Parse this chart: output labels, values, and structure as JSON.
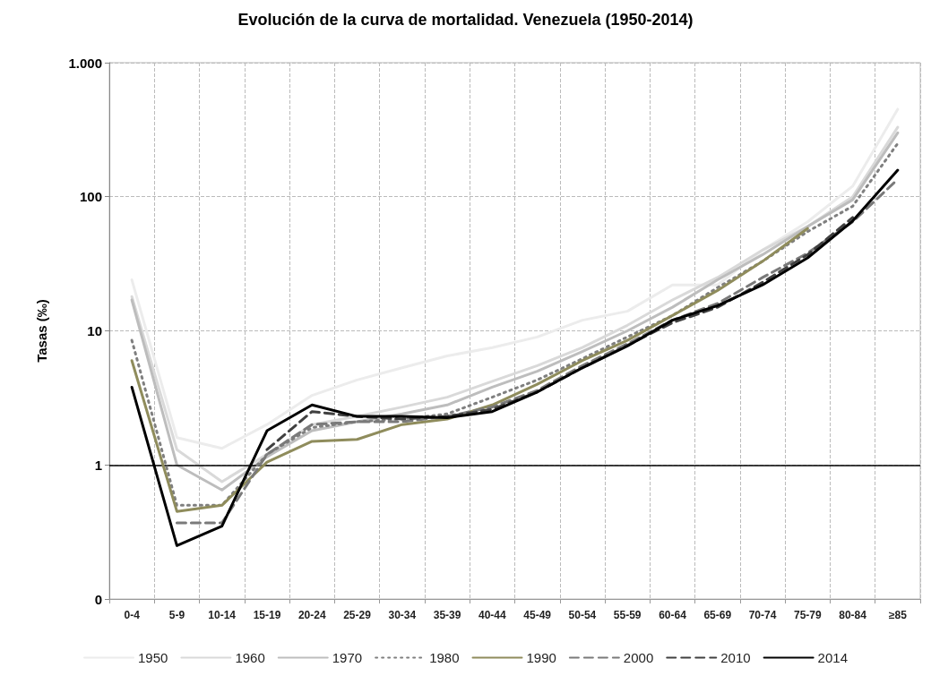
{
  "chart_data": {
    "type": "line",
    "title": "Evolución de la curva de mortalidad. Venezuela (1950-2014)",
    "ylabel": "Tasas (‰)",
    "categories": [
      "0-4",
      "5-9",
      "10-14",
      "15-19",
      "20-24",
      "25-29",
      "30-34",
      "35-39",
      "40-44",
      "45-49",
      "50-54",
      "55-59",
      "60-64",
      "65-69",
      "70-74",
      "75-79",
      "80-84",
      "≥85"
    ],
    "series": [
      {
        "name": "1950",
        "color": "#ececec",
        "line_style": "solid",
        "values": [
          24,
          1.6,
          1.33,
          2.0,
          3.3,
          4.3,
          5.3,
          6.5,
          7.5,
          9,
          12,
          14,
          22,
          22,
          40,
          65,
          120,
          450
        ]
      },
      {
        "name": "1960",
        "color": "#d9d9d9",
        "line_style": "solid",
        "values": [
          18,
          1.3,
          0.75,
          1.2,
          2.0,
          2.3,
          2.7,
          3.2,
          4.2,
          5.5,
          7.5,
          11,
          17,
          25,
          40,
          60,
          100,
          330
        ]
      },
      {
        "name": "1970",
        "color": "#bdbdbd",
        "line_style": "solid",
        "values": [
          17,
          1.0,
          0.65,
          1.15,
          1.8,
          2.1,
          2.4,
          2.8,
          3.8,
          5.0,
          7,
          10,
          15,
          24,
          37,
          60,
          95,
          300
        ]
      },
      {
        "name": "1980",
        "color": "#7f7f7f",
        "line_style": "dotted",
        "values": [
          8.5,
          0.5,
          0.5,
          1.2,
          1.9,
          2.1,
          2.2,
          2.4,
          3.2,
          4.3,
          6.2,
          9,
          13,
          21,
          33,
          55,
          85,
          250
        ]
      },
      {
        "name": "1990",
        "color": "#8f8c5c",
        "line_style": "solid",
        "values": [
          6,
          0.45,
          0.5,
          1.05,
          1.5,
          1.55,
          2.0,
          2.2,
          2.8,
          4.0,
          6.0,
          8.5,
          13,
          20,
          33,
          58,
          null,
          null
        ]
      },
      {
        "name": "2000",
        "color": "#7a7a7a",
        "line_style": "dashed",
        "values": [
          null,
          0.37,
          0.37,
          1.2,
          2.0,
          2.1,
          2.1,
          2.3,
          2.7,
          3.6,
          5.5,
          8,
          12,
          16,
          25,
          38,
          65,
          135
        ]
      },
      {
        "name": "2010",
        "color": "#404040",
        "line_style": "dashed",
        "values": [
          null,
          null,
          null,
          1.3,
          2.5,
          2.3,
          2.2,
          2.3,
          2.6,
          3.5,
          5.3,
          7.8,
          11.5,
          15,
          23,
          37,
          70,
          null
        ]
      },
      {
        "name": "2014",
        "color": "#000000",
        "line_style": "solid",
        "values": [
          3.8,
          0.25,
          0.35,
          1.8,
          2.8,
          2.3,
          2.3,
          2.25,
          2.5,
          3.5,
          5.3,
          7.7,
          12,
          15.4,
          22,
          35,
          66,
          158
        ]
      }
    ],
    "log": true,
    "ylim": [
      0.1,
      1000
    ],
    "yticks": [
      {
        "value": 0.1,
        "label": "0"
      },
      1,
      10,
      100,
      {
        "value": 1000,
        "label": "1.000"
      }
    ],
    "ref_lines": [
      {
        "axis": "y",
        "value": 1,
        "color": "#000000"
      }
    ],
    "grid": true,
    "legend": "bottom",
    "marker": "none"
  }
}
